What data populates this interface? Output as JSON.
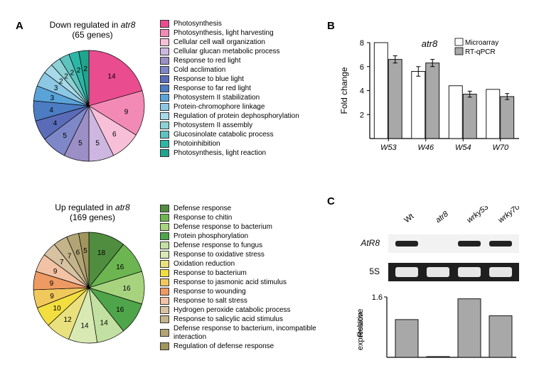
{
  "panelA": {
    "label": "A",
    "down_title_l1": "Down regulated in",
    "down_title_italic": "atr8",
    "down_title_l2": "(65 genes)",
    "up_title_l1": "Up regulated in",
    "up_title_italic": "atr8",
    "up_title_l2": "(169 genes)",
    "down_pie": {
      "slices": [
        {
          "label": "Photosynthesis",
          "value": 14,
          "color": "#e94d8f"
        },
        {
          "label": "Photosynthesis, light harvesting",
          "value": 9,
          "color": "#f28ab5"
        },
        {
          "label": "Cellular cell wall organization",
          "value": 6,
          "color": "#f7c0d8"
        },
        {
          "label": "Cellular glucan metabolic process",
          "value": 5,
          "color": "#cdb7e0"
        },
        {
          "label": "Response to red light",
          "value": 5,
          "color": "#9b8fc6"
        },
        {
          "label": "Cold acclimation",
          "value": 5,
          "color": "#7e88c8"
        },
        {
          "label": "Response to blue light",
          "value": 4,
          "color": "#5a6cb8"
        },
        {
          "label": "Response to far red light",
          "value": 4,
          "color": "#4c7cc2"
        },
        {
          "label": "Photosystem II stabilization",
          "value": 3,
          "color": "#5aa3d8"
        },
        {
          "label": "Protein-chromophore linkage",
          "value": 3,
          "color": "#8cc7e4"
        },
        {
          "label": "Regulation of protein dephosphorylation",
          "value": 2,
          "color": "#a7d9e8"
        },
        {
          "label": "Photosystem II assembly",
          "value": 2,
          "color": "#8ed1d4"
        },
        {
          "label": "Glucosinolate catabolic process",
          "value": 2,
          "color": "#5ec3bf"
        },
        {
          "label": "Photoinhibition",
          "value": 2,
          "color": "#2eb6a5"
        },
        {
          "label": "Photosynthesis, light reaction",
          "value": 2,
          "color": "#1fa58d"
        }
      ],
      "stroke": "#000000",
      "stroke_width": 0.7
    },
    "up_pie": {
      "slices": [
        {
          "label": "Defense response",
          "value": 18,
          "color": "#508d3f"
        },
        {
          "label": "Response to chitin",
          "value": 16,
          "color": "#6cb551"
        },
        {
          "label": "Defense response to bacterium",
          "value": 16,
          "color": "#a7d37e"
        },
        {
          "label": "Protein phosphorylation",
          "value": 16,
          "color": "#4fa54a"
        },
        {
          "label": "Defense response to fungus",
          "value": 14,
          "color": "#c2e0a1"
        },
        {
          "label": "Response to oxidative stress",
          "value": 14,
          "color": "#d8e9b3"
        },
        {
          "label": "Oxidation reduction",
          "value": 12,
          "color": "#e9e17d"
        },
        {
          "label": "Response to bacterium",
          "value": 10,
          "color": "#f3de3f"
        },
        {
          "label": "Response to jasmonic acid stimulus",
          "value": 9,
          "color": "#f1c85c"
        },
        {
          "label": "Response to wounding",
          "value": 9,
          "color": "#ee9a63"
        },
        {
          "label": "Response to salt stress",
          "value": 9,
          "color": "#f2c2a4"
        },
        {
          "label": "Hydrogen peroxide catabolic process",
          "value": 7,
          "color": "#d7c2a1"
        },
        {
          "label": "Response to salicylic acid stimulus",
          "value": 7,
          "color": "#c4b48a"
        },
        {
          "label": "Defense response to bacterium, incompatible interaction",
          "value": 6,
          "color": "#b2a474"
        },
        {
          "label": "Regulation of defense response",
          "value": 5,
          "color": "#a0955f"
        }
      ],
      "stroke": "#000000",
      "stroke_width": 0.7
    }
  },
  "panelB": {
    "label": "B",
    "italic_title": "atr8",
    "ylabel": "Fold change",
    "ylim": [
      0,
      8
    ],
    "ytick_step": 2,
    "legend": [
      {
        "name": "Microarray",
        "color": "#ffffff"
      },
      {
        "name": "RT-qPCR",
        "color": "#a8a8a8"
      }
    ],
    "categories": [
      "W53",
      "W46",
      "W54",
      "W70"
    ],
    "series": {
      "Microarray": [
        8.0,
        5.6,
        4.4,
        4.1
      ],
      "RT-qPCR": [
        6.6,
        6.3,
        3.7,
        3.5
      ]
    },
    "errors": {
      "Microarray": [
        0.0,
        0.4,
        0.0,
        0.0
      ],
      "RT-qPCR": [
        0.3,
        0.3,
        0.25,
        0.25
      ]
    },
    "bar_stroke": "#000000",
    "axis_color": "#000000",
    "bar_width": 0.38
  },
  "panelC": {
    "label": "C",
    "lanes": [
      "Wt",
      "atr8",
      "wrky53",
      "wrky70"
    ],
    "rows": [
      {
        "name": "AtR8",
        "italic": true,
        "bg": "#f2f2f2",
        "bands": [
          1.0,
          0.0,
          1.0,
          1.0
        ]
      },
      {
        "name": "5S",
        "italic": false,
        "bg": "#1f1f1f",
        "bands": [
          1.0,
          1.0,
          1.0,
          1.0
        ],
        "invert": true
      }
    ],
    "bar": {
      "ylabel": "Relative\nexpression",
      "ylim": [
        0,
        1.6
      ],
      "ytick": 1.6,
      "values": [
        1.0,
        0.02,
        1.55,
        1.1
      ],
      "bar_color": "#a8a8a8",
      "bar_stroke": "#000000"
    }
  }
}
